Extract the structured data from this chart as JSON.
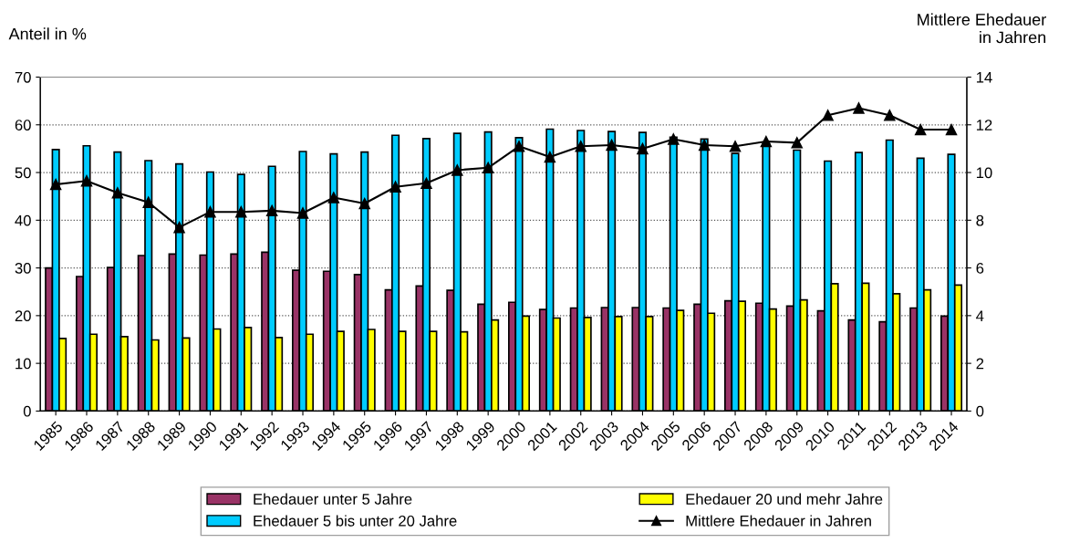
{
  "chart_data": {
    "type": "bar",
    "ylabel": "Anteil in %",
    "y2label": "Mittlere Ehedauer\nin Jahren",
    "categories": [
      "1985",
      "1986",
      "1987",
      "1988",
      "1989",
      "1990",
      "1991",
      "1992",
      "1993",
      "1994",
      "1995",
      "1996",
      "1997",
      "1998",
      "1999",
      "2000",
      "2001",
      "2002",
      "2003",
      "2004",
      "2005",
      "2006",
      "2007",
      "2008",
      "2009",
      "2010",
      "2011",
      "2012",
      "2013",
      "2014"
    ],
    "series": [
      {
        "name": "Ehedauer unter 5 Jahre",
        "color": "#993366",
        "values": [
          30.0,
          28.2,
          30.1,
          32.6,
          32.9,
          32.7,
          32.9,
          33.3,
          29.5,
          29.3,
          28.6,
          25.4,
          26.2,
          25.3,
          22.4,
          22.8,
          21.3,
          21.6,
          21.7,
          21.7,
          21.6,
          22.4,
          23.1,
          22.6,
          22.0,
          21.0,
          19.1,
          18.7,
          21.6,
          19.9
        ]
      },
      {
        "name": "Ehedauer 5 bis unter 20 Jahre",
        "color": "#00ccff",
        "values": [
          54.8,
          55.6,
          54.3,
          52.5,
          51.8,
          50.1,
          49.6,
          51.3,
          54.4,
          53.9,
          54.3,
          57.8,
          57.1,
          58.2,
          58.5,
          57.3,
          59.1,
          58.8,
          58.6,
          58.4,
          57.4,
          57.0,
          54.0,
          56.0,
          54.7,
          52.4,
          54.2,
          56.8,
          53.0,
          53.8
        ]
      },
      {
        "name": "Ehedauer 20 und mehr Jahre",
        "color": "#ffff00",
        "values": [
          15.2,
          16.1,
          15.6,
          14.9,
          15.3,
          17.2,
          17.5,
          15.4,
          16.1,
          16.7,
          17.1,
          16.7,
          16.7,
          16.6,
          19.1,
          19.9,
          19.5,
          19.6,
          19.8,
          19.8,
          21.1,
          20.5,
          23.0,
          21.4,
          23.3,
          26.7,
          26.8,
          24.6,
          25.4,
          26.4
        ]
      },
      {
        "name": "Mittlere Ehedauer in Jahren",
        "type": "line",
        "axis": "y2",
        "color": "#000000",
        "marker": "triangle",
        "values": [
          9.5,
          9.65,
          9.15,
          8.75,
          7.7,
          8.35,
          8.35,
          8.4,
          8.3,
          8.95,
          8.7,
          9.4,
          9.55,
          10.1,
          10.2,
          11.1,
          10.65,
          11.1,
          11.15,
          11.0,
          11.4,
          11.15,
          11.1,
          11.3,
          11.25,
          12.4,
          12.7,
          12.4,
          11.8,
          11.8
        ]
      }
    ],
    "ylim": [
      0,
      70
    ],
    "yticks": [
      0,
      10,
      20,
      30,
      40,
      50,
      60,
      70
    ],
    "y2lim": [
      0,
      14
    ],
    "y2ticks": [
      0,
      2,
      4,
      6,
      8,
      10,
      12,
      14
    ],
    "grid": "y",
    "legend": "bottom"
  }
}
